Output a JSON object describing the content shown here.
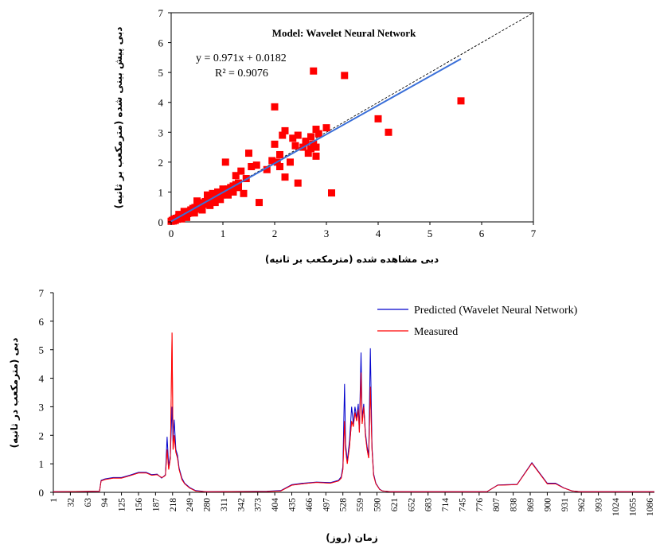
{
  "chart_data": [
    {
      "type": "scatter",
      "title": "Model: Wavelet Neural Network",
      "xlabel": "دبی مشاهده شده (مترمکعب بر ثانیه)",
      "ylabel": "دبی پیش بینی شده (مترمکعب بر ثانیه)",
      "xlim": [
        0,
        7
      ],
      "ylim": [
        0,
        7
      ],
      "xticks": [
        "0",
        "1",
        "2",
        "3",
        "4",
        "5",
        "6",
        "7"
      ],
      "yticks": [
        "0",
        "1",
        "2",
        "3",
        "4",
        "5",
        "6",
        "7"
      ],
      "equation": "y = 0.971x + 0.0182",
      "r2": "R² = 0.9076",
      "trendline": {
        "slope": 0.971,
        "intercept": 0.0182,
        "x_range": [
          0,
          5.6
        ],
        "color": "#3a6fd8"
      },
      "reference_line": {
        "from": [
          0,
          0
        ],
        "to": [
          7,
          7
        ],
        "style": "dashed"
      },
      "marker_color": "#ff0000",
      "points": [
        [
          0.0,
          0.02
        ],
        [
          0.02,
          0.05
        ],
        [
          0.04,
          0.03
        ],
        [
          0.05,
          0.08
        ],
        [
          0.07,
          0.1
        ],
        [
          0.08,
          0.05
        ],
        [
          0.1,
          0.12
        ],
        [
          0.12,
          0.09
        ],
        [
          0.14,
          0.15
        ],
        [
          0.16,
          0.13
        ],
        [
          0.18,
          0.2
        ],
        [
          0.2,
          0.18
        ],
        [
          0.22,
          0.22
        ],
        [
          0.24,
          0.2
        ],
        [
          0.26,
          0.27
        ],
        [
          0.28,
          0.24
        ],
        [
          0.3,
          0.32
        ],
        [
          0.32,
          0.28
        ],
        [
          0.34,
          0.35
        ],
        [
          0.36,
          0.3
        ],
        [
          0.38,
          0.4
        ],
        [
          0.4,
          0.36
        ],
        [
          0.42,
          0.45
        ],
        [
          0.44,
          0.39
        ],
        [
          0.46,
          0.48
        ],
        [
          0.48,
          0.43
        ],
        [
          0.5,
          0.52
        ],
        [
          0.52,
          0.47
        ],
        [
          0.54,
          0.56
        ],
        [
          0.56,
          0.5
        ],
        [
          0.58,
          0.6
        ],
        [
          0.6,
          0.55
        ],
        [
          0.62,
          0.64
        ],
        [
          0.64,
          0.59
        ],
        [
          0.66,
          0.68
        ],
        [
          0.68,
          0.62
        ],
        [
          0.7,
          0.72
        ],
        [
          0.72,
          0.66
        ],
        [
          0.74,
          0.75
        ],
        [
          0.76,
          0.7
        ],
        [
          0.78,
          0.78
        ],
        [
          0.8,
          0.74
        ],
        [
          0.82,
          0.82
        ],
        [
          0.84,
          0.78
        ],
        [
          0.86,
          0.86
        ],
        [
          0.88,
          0.8
        ],
        [
          0.9,
          0.9
        ],
        [
          0.92,
          0.85
        ],
        [
          0.95,
          0.95
        ],
        [
          0.98,
          0.9
        ],
        [
          1.0,
          1.0
        ],
        [
          1.02,
          0.95
        ],
        [
          1.05,
          1.05
        ],
        [
          1.08,
          1.0
        ],
        [
          1.1,
          1.1
        ],
        [
          1.12,
          1.05
        ],
        [
          1.15,
          1.15
        ],
        [
          1.18,
          1.1
        ],
        [
          1.2,
          1.2
        ],
        [
          1.25,
          1.25
        ],
        [
          1.3,
          1.3
        ],
        [
          1.2,
          1.0
        ],
        [
          1.3,
          1.15
        ],
        [
          1.1,
          0.9
        ],
        [
          0.45,
          0.3
        ],
        [
          0.5,
          0.7
        ],
        [
          0.55,
          0.45
        ],
        [
          0.6,
          0.4
        ],
        [
          0.7,
          0.9
        ],
        [
          0.75,
          0.55
        ],
        [
          0.8,
          0.95
        ],
        [
          0.85,
          0.65
        ],
        [
          0.9,
          1.0
        ],
        [
          0.95,
          0.75
        ],
        [
          1.0,
          1.1
        ],
        [
          0.3,
          0.15
        ],
        [
          0.25,
          0.35
        ],
        [
          0.2,
          0.1
        ],
        [
          0.15,
          0.25
        ],
        [
          1.05,
          2.0
        ],
        [
          1.25,
          1.55
        ],
        [
          1.35,
          1.7
        ],
        [
          1.4,
          0.95
        ],
        [
          1.45,
          1.45
        ],
        [
          1.5,
          2.3
        ],
        [
          1.55,
          1.85
        ],
        [
          1.65,
          1.9
        ],
        [
          1.7,
          0.65
        ],
        [
          1.85,
          1.75
        ],
        [
          1.95,
          2.05
        ],
        [
          2.0,
          2.6
        ],
        [
          2.0,
          3.85
        ],
        [
          2.05,
          2.0
        ],
        [
          2.1,
          1.85
        ],
        [
          2.1,
          2.25
        ],
        [
          2.15,
          2.9
        ],
        [
          2.2,
          1.5
        ],
        [
          2.2,
          3.05
        ],
        [
          2.3,
          2.0
        ],
        [
          2.35,
          2.8
        ],
        [
          2.4,
          2.55
        ],
        [
          2.45,
          1.3
        ],
        [
          2.45,
          2.9
        ],
        [
          2.55,
          2.5
        ],
        [
          2.6,
          2.7
        ],
        [
          2.65,
          2.3
        ],
        [
          2.7,
          2.85
        ],
        [
          2.7,
          2.45
        ],
        [
          2.75,
          2.6
        ],
        [
          2.75,
          5.05
        ],
        [
          2.8,
          3.1
        ],
        [
          2.8,
          2.5
        ],
        [
          2.8,
          2.2
        ],
        [
          2.85,
          2.95
        ],
        [
          3.0,
          3.15
        ],
        [
          3.1,
          0.97
        ],
        [
          3.35,
          4.9
        ],
        [
          4.0,
          3.45
        ],
        [
          4.2,
          3.0
        ],
        [
          5.6,
          4.05
        ]
      ]
    },
    {
      "type": "line",
      "xlabel": "زمان (روز)",
      "ylabel": "دبی (مترمکعب در ثانیه)",
      "xlim": [
        1,
        1095
      ],
      "ylim": [
        0,
        7
      ],
      "yticks": [
        "0",
        "1",
        "2",
        "3",
        "4",
        "5",
        "6",
        "7"
      ],
      "xticks": [
        "1",
        "32",
        "63",
        "94",
        "125",
        "156",
        "187",
        "218",
        "249",
        "280",
        "311",
        "342",
        "373",
        "404",
        "435",
        "466",
        "497",
        "528",
        "559",
        "590",
        "621",
        "652",
        "683",
        "714",
        "745",
        "776",
        "807",
        "838",
        "869",
        "900",
        "931",
        "962",
        "993",
        "1024",
        "1055",
        "1086"
      ],
      "series": [
        {
          "name": "Measured",
          "color": "#ff0000",
          "points": [
            [
              1,
              0.02
            ],
            [
              60,
              0.03
            ],
            [
              85,
              0.04
            ],
            [
              88,
              0.4
            ],
            [
              95,
              0.45
            ],
            [
              110,
              0.5
            ],
            [
              125,
              0.5
            ],
            [
              140,
              0.58
            ],
            [
              156,
              0.68
            ],
            [
              170,
              0.68
            ],
            [
              180,
              0.6
            ],
            [
              190,
              0.62
            ],
            [
              198,
              0.52
            ],
            [
              202,
              0.55
            ],
            [
              205,
              0.6
            ],
            [
              208,
              1.5
            ],
            [
              211,
              0.8
            ],
            [
              214,
              1.2
            ],
            [
              217,
              5.6
            ],
            [
              219,
              1.5
            ],
            [
              221,
              2.0
            ],
            [
              224,
              1.4
            ],
            [
              227,
              1.2
            ],
            [
              230,
              0.8
            ],
            [
              235,
              0.45
            ],
            [
              240,
              0.3
            ],
            [
              249,
              0.15
            ],
            [
              260,
              0.05
            ],
            [
              280,
              0.02
            ],
            [
              390,
              0.03
            ],
            [
              415,
              0.05
            ],
            [
              435,
              0.25
            ],
            [
              455,
              0.3
            ],
            [
              480,
              0.35
            ],
            [
              505,
              0.32
            ],
            [
              520,
              0.4
            ],
            [
              525,
              0.5
            ],
            [
              528,
              0.8
            ],
            [
              531,
              2.5
            ],
            [
              533,
              1.5
            ],
            [
              536,
              1.0
            ],
            [
              540,
              1.6
            ],
            [
              544,
              2.5
            ],
            [
              547,
              2.3
            ],
            [
              550,
              2.8
            ],
            [
              553,
              2.5
            ],
            [
              556,
              2.9
            ],
            [
              558,
              2.1
            ],
            [
              561,
              4.2
            ],
            [
              563,
              2.4
            ],
            [
              566,
              3.0
            ],
            [
              569,
              2.0
            ],
            [
              572,
              1.5
            ],
            [
              575,
              1.2
            ],
            [
              578,
              3.7
            ],
            [
              581,
              1.5
            ],
            [
              584,
              0.6
            ],
            [
              588,
              0.3
            ],
            [
              595,
              0.1
            ],
            [
              600,
              0.05
            ],
            [
              615,
              0.02
            ],
            [
              790,
              0.02
            ],
            [
              810,
              0.25
            ],
            [
              845,
              0.27
            ],
            [
              872,
              1.02
            ],
            [
              900,
              0.3
            ],
            [
              915,
              0.3
            ],
            [
              930,
              0.15
            ],
            [
              945,
              0.05
            ],
            [
              960,
              0.02
            ],
            [
              1095,
              0.02
            ]
          ]
        },
        {
          "name": "Predicted (Wavelet Neural Network)",
          "color": "#0000cc",
          "points": [
            [
              1,
              0.02
            ],
            [
              60,
              0.03
            ],
            [
              85,
              0.04
            ],
            [
              88,
              0.42
            ],
            [
              95,
              0.47
            ],
            [
              110,
              0.52
            ],
            [
              125,
              0.52
            ],
            [
              140,
              0.6
            ],
            [
              156,
              0.7
            ],
            [
              170,
              0.7
            ],
            [
              180,
              0.62
            ],
            [
              190,
              0.64
            ],
            [
              198,
              0.5
            ],
            [
              202,
              0.56
            ],
            [
              205,
              0.62
            ],
            [
              208,
              1.95
            ],
            [
              211,
              0.9
            ],
            [
              214,
              1.3
            ],
            [
              217,
              3.0
            ],
            [
              219,
              1.8
            ],
            [
              221,
              2.55
            ],
            [
              224,
              1.5
            ],
            [
              227,
              1.3
            ],
            [
              230,
              0.85
            ],
            [
              235,
              0.5
            ],
            [
              240,
              0.32
            ],
            [
              249,
              0.17
            ],
            [
              260,
              0.06
            ],
            [
              280,
              0.02
            ],
            [
              390,
              0.04
            ],
            [
              415,
              0.06
            ],
            [
              435,
              0.27
            ],
            [
              455,
              0.32
            ],
            [
              480,
              0.36
            ],
            [
              505,
              0.34
            ],
            [
              520,
              0.42
            ],
            [
              525,
              0.55
            ],
            [
              528,
              0.9
            ],
            [
              531,
              3.8
            ],
            [
              533,
              1.7
            ],
            [
              536,
              1.1
            ],
            [
              540,
              1.8
            ],
            [
              544,
              3.0
            ],
            [
              547,
              2.4
            ],
            [
              550,
              3.0
            ],
            [
              553,
              2.6
            ],
            [
              556,
              3.1
            ],
            [
              558,
              2.2
            ],
            [
              561,
              4.9
            ],
            [
              563,
              2.6
            ],
            [
              566,
              3.1
            ],
            [
              569,
              2.1
            ],
            [
              572,
              1.6
            ],
            [
              575,
              1.3
            ],
            [
              578,
              5.05
            ],
            [
              581,
              1.6
            ],
            [
              584,
              0.65
            ],
            [
              588,
              0.32
            ],
            [
              595,
              0.11
            ],
            [
              600,
              0.05
            ],
            [
              615,
              0.02
            ],
            [
              790,
              0.02
            ],
            [
              810,
              0.26
            ],
            [
              845,
              0.28
            ],
            [
              872,
              1.04
            ],
            [
              900,
              0.32
            ],
            [
              915,
              0.32
            ],
            [
              930,
              0.16
            ],
            [
              945,
              0.05
            ],
            [
              960,
              0.02
            ],
            [
              1095,
              0.02
            ]
          ]
        }
      ],
      "legend": "top-right"
    }
  ]
}
